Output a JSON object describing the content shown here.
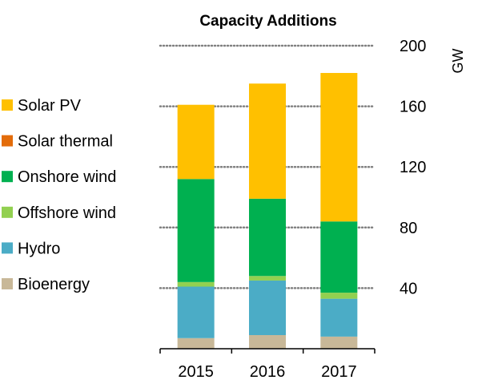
{
  "chart_data": {
    "type": "bar",
    "stacked": true,
    "title": "Capacity Additions",
    "ylabel": "GW",
    "ylim": [
      0,
      200
    ],
    "yticks": [
      "40",
      "80",
      "120",
      "160",
      "200"
    ],
    "y_axis_side": "right",
    "grid": "dotted horizontal",
    "legend_position": "left",
    "categories": [
      "2015",
      "2016",
      "2017"
    ],
    "series": [
      {
        "name": "Bioenergy",
        "color": "#c8b898",
        "values": [
          7,
          9,
          8
        ]
      },
      {
        "name": "Hydro",
        "color": "#4bacc6",
        "values": [
          34,
          36,
          25
        ]
      },
      {
        "name": "Offshore wind",
        "color": "#92d050",
        "values": [
          3,
          3,
          4
        ]
      },
      {
        "name": "Onshore wind",
        "color": "#00b050",
        "values": [
          68,
          51,
          47
        ]
      },
      {
        "name": "Solar thermal",
        "color": "#e36c0a",
        "values": [
          0,
          0,
          0
        ]
      },
      {
        "name": "Solar PV",
        "color": "#ffc000",
        "values": [
          49,
          76,
          98
        ]
      }
    ],
    "legend_order": [
      "Solar PV",
      "Solar thermal",
      "Onshore wind",
      "Offshore wind",
      "Hydro",
      "Bioenergy"
    ]
  }
}
